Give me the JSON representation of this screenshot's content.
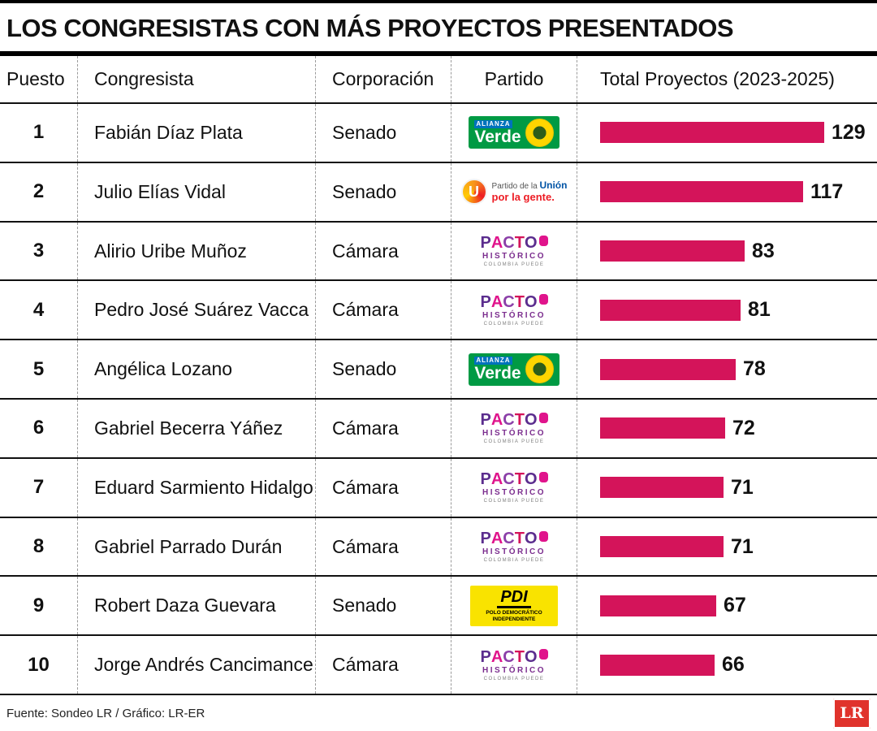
{
  "title": "LOS CONGRESISTAS CON MÁS PROYECTOS PRESENTADOS",
  "columns": {
    "puesto": "Puesto",
    "congresista": "Congresista",
    "corporacion": "Corporación",
    "partido": "Partido",
    "total": "Total Proyectos  (2023-2025)"
  },
  "parties": {
    "verde": {
      "name": "Alianza Verde",
      "top": "ALIANZA",
      "main": "Verde"
    },
    "u": {
      "name": "Partido de la U",
      "mark": "U",
      "line1a": "Partido de la ",
      "line1b": "Unión",
      "line2": "por la gente."
    },
    "pacto": {
      "name": "Pacto Histórico",
      "l1": "P",
      "l2": "A",
      "l3": "C",
      "l4": "T",
      "l5": "O",
      "sub": "HISTÓRICO",
      "tiny": "COLOMBIA PUEDE"
    },
    "pdi": {
      "name": "PDI",
      "main": "PDI",
      "sub": "POLO DEMOCRÁTICO INDEPENDIENTE"
    }
  },
  "colors": {
    "bar": "#d4145a",
    "verde_green": "#009a44",
    "pdi_yellow": "#f9e300",
    "lr_red": "#e0332c"
  },
  "chart_data": {
    "type": "bar",
    "title": "LOS CONGRESISTAS CON MÁS PROYECTOS PRESENTADOS",
    "xlabel": "Total Proyectos (2023-2025)",
    "xmax": 129,
    "categories": [
      "Fabián Díaz Plata",
      "Julio Elías Vidal",
      "Alirio Uribe Muñoz",
      "Pedro José Suárez Vacca",
      "Angélica Lozano",
      "Gabriel Becerra Yáñez",
      "Eduard Sarmiento Hidalgo",
      "Gabriel Parrado Durán",
      "Robert Daza Guevara",
      "Jorge Andrés Cancimance"
    ],
    "values": [
      129,
      117,
      83,
      81,
      78,
      72,
      71,
      71,
      67,
      66
    ],
    "rows": [
      {
        "puesto": "1",
        "congresista": "Fabián Díaz Plata",
        "corporacion": "Senado",
        "partido": "Alianza Verde",
        "total": 129
      },
      {
        "puesto": "2",
        "congresista": "Julio Elías Vidal",
        "corporacion": "Senado",
        "partido": "Partido de la U",
        "total": 117
      },
      {
        "puesto": "3",
        "congresista": "Alirio Uribe Muñoz",
        "corporacion": "Cámara",
        "partido": "Pacto Histórico",
        "total": 83
      },
      {
        "puesto": "4",
        "congresista": "Pedro José Suárez Vacca",
        "corporacion": "Cámara",
        "partido": "Pacto Histórico",
        "total": 81
      },
      {
        "puesto": "5",
        "congresista": "Angélica Lozano",
        "corporacion": "Senado",
        "partido": "Alianza Verde",
        "total": 78
      },
      {
        "puesto": "6",
        "congresista": "Gabriel Becerra Yáñez",
        "corporacion": "Cámara",
        "partido": "Pacto Histórico",
        "total": 72
      },
      {
        "puesto": "7",
        "congresista": "Eduard Sarmiento Hidalgo",
        "corporacion": "Cámara",
        "partido": "Pacto Histórico",
        "total": 71
      },
      {
        "puesto": "8",
        "congresista": "Gabriel Parrado Durán",
        "corporacion": "Cámara",
        "partido": "Pacto Histórico",
        "total": 71
      },
      {
        "puesto": "9",
        "congresista": "Robert Daza Guevara",
        "corporacion": "Senado",
        "partido": "PDI",
        "total": 67
      },
      {
        "puesto": "10",
        "congresista": "Jorge Andrés Cancimance",
        "corporacion": "Cámara",
        "partido": "Pacto Histórico",
        "total": 66
      }
    ]
  },
  "footer": {
    "source": "Fuente: Sondeo LR / Gráfico: LR-ER",
    "logo": "LR"
  }
}
